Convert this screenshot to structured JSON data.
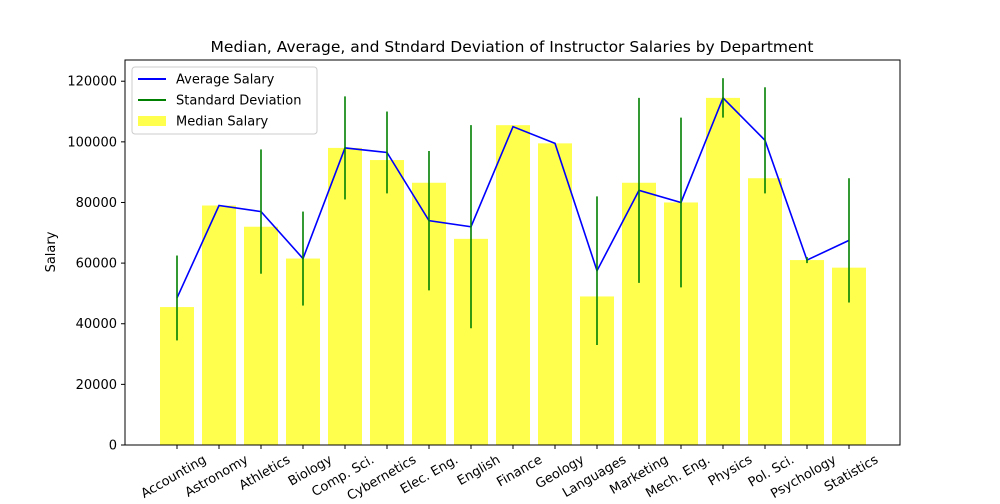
{
  "chart_data": {
    "type": "bar",
    "title": "Median, Average, and Stndard Deviation of Instructor Salaries by Department",
    "xlabel": "",
    "ylabel": "Salary",
    "ylim": [
      0,
      127000
    ],
    "yticks": [
      0,
      20000,
      40000,
      60000,
      80000,
      100000,
      120000
    ],
    "grid": false,
    "legend_position": "top-left",
    "categories": [
      "Accounting",
      "Astronomy",
      "Athletics",
      "Biology",
      "Comp. Sci.",
      "Cybernetics",
      "Elec. Eng.",
      "English",
      "Finance",
      "Geology",
      "Languages",
      "Marketing",
      "Mech. Eng.",
      "Physics",
      "Pol. Sci.",
      "Psychology",
      "Statistics"
    ],
    "series": [
      {
        "name": "Median Salary",
        "kind": "bar",
        "color": "#ffff4d",
        "values": [
          45500,
          79000,
          72000,
          61500,
          98000,
          94000,
          86500,
          68000,
          105500,
          99500,
          49000,
          86500,
          80000,
          114500,
          88000,
          61000,
          58500
        ]
      },
      {
        "name": "Average Salary",
        "kind": "line",
        "color": "#0000ff",
        "values": [
          48500,
          79000,
          77000,
          61500,
          98000,
          96500,
          74000,
          72000,
          105000,
          99500,
          57500,
          84000,
          80000,
          114500,
          100500,
          61000,
          67500
        ]
      },
      {
        "name": "Standard Deviation",
        "kind": "errorbar",
        "color": "#008000",
        "values": [
          14000,
          0,
          20500,
          15500,
          17000,
          13500,
          23000,
          33500,
          0,
          0,
          24500,
          30500,
          28000,
          6500,
          17500,
          1000,
          20500
        ]
      }
    ],
    "legend_order": [
      "Average Salary",
      "Standard Deviation",
      "Median Salary"
    ]
  }
}
